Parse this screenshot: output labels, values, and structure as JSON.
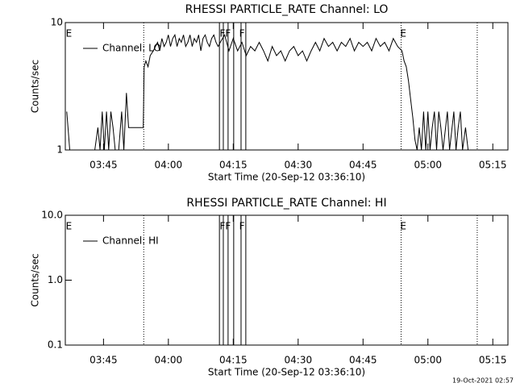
{
  "chart_data": [
    {
      "type": "line",
      "title": "RHESSI PARTICLE_RATE Channel: LO",
      "ylabel": "Counts/sec",
      "xlabel": "Start Time (20-Sep-12 03:36:10)",
      "log_y": true,
      "legend": "upper left",
      "xlim": [
        216.17,
        318.5
      ],
      "ylim": [
        1,
        10
      ],
      "yticks": [
        1,
        10
      ],
      "xticks": [
        {
          "value": 225,
          "label": "03:45"
        },
        {
          "value": 240,
          "label": "04:00"
        },
        {
          "value": 255,
          "label": "04:15"
        },
        {
          "value": 270,
          "label": "04:30"
        },
        {
          "value": 285,
          "label": "04:45"
        },
        {
          "value": 300,
          "label": "05:00"
        },
        {
          "value": 315,
          "label": "05:15"
        }
      ],
      "dotted_lines": [
        234.3,
        293.8,
        311.4
      ],
      "solid_lines": [
        251.8,
        252.7,
        253.8,
        255.1,
        256.8,
        257.9
      ],
      "markers": [
        {
          "x": 217.0,
          "label": "E"
        },
        {
          "x": 252.5,
          "label": "F"
        },
        {
          "x": 253.8,
          "label": "F"
        },
        {
          "x": 257.0,
          "label": "F"
        },
        {
          "x": 294.3,
          "label": "E"
        }
      ],
      "x": [
        216.5,
        217.2,
        218,
        219,
        220,
        221,
        222,
        223,
        223.7,
        224.2,
        224.7,
        225.2,
        225.7,
        226.2,
        226.7,
        227.2,
        227.7,
        228.5,
        229.2,
        229.7,
        230.3,
        230.8,
        231.5,
        232.5,
        233.5,
        234.2,
        234.4,
        234.8,
        235.3,
        235.8,
        236.5,
        237,
        237.5,
        238,
        238.5,
        239,
        239.5,
        240,
        240.5,
        241,
        241.5,
        242,
        242.5,
        243,
        243.5,
        244,
        244.5,
        245,
        245.5,
        246,
        246.5,
        247,
        247.5,
        248,
        248.5,
        249,
        249.5,
        250,
        250.5,
        251,
        251.5,
        252,
        253,
        254,
        255,
        256,
        257,
        258,
        259,
        260,
        261,
        262,
        263,
        264,
        265,
        266,
        267,
        268,
        269,
        270,
        271,
        272,
        273,
        274,
        275,
        276,
        277,
        278,
        279,
        280,
        281,
        282,
        283,
        284,
        285,
        286,
        287,
        288,
        289,
        290,
        291,
        292,
        293,
        294,
        294.5,
        295,
        295.5,
        296,
        296.5,
        297,
        297.5,
        298,
        298.5,
        299,
        299.5,
        300,
        300.5,
        301,
        301.5,
        302,
        302.5,
        303,
        303.5,
        304.5,
        305,
        306,
        306.5,
        307,
        307.5,
        308,
        308.7,
        309.3
      ],
      "series": [
        {
          "name": "Channel: LO",
          "color": "#000000",
          "values": [
            2,
            1,
            1,
            1,
            1,
            1,
            1,
            1,
            1.5,
            1,
            2,
            1,
            2,
            1,
            2,
            1.5,
            1,
            1,
            2,
            1,
            2.8,
            1.5,
            1.5,
            1.5,
            1.5,
            1.5,
            4.5,
            5,
            4.5,
            5.5,
            6,
            6.5,
            7,
            6,
            7.5,
            6.5,
            7,
            8,
            6.5,
            7.5,
            8,
            6.5,
            7.5,
            7,
            8,
            6.5,
            7,
            8,
            6.5,
            7.5,
            7,
            8,
            6,
            7.5,
            8,
            7,
            6.5,
            7.5,
            8,
            7,
            6.5,
            7,
            8,
            6,
            7.5,
            6,
            7,
            5.5,
            6.5,
            6,
            7,
            6,
            5,
            6.5,
            5.5,
            6,
            5,
            6,
            6.5,
            5.5,
            6,
            5,
            6,
            7,
            6,
            7.5,
            6.5,
            7,
            6,
            7,
            6.5,
            7.5,
            6,
            7,
            6.5,
            7,
            6,
            7.5,
            6.5,
            7,
            6,
            7.5,
            6.5,
            6,
            5,
            4.5,
            3.5,
            2.5,
            1.8,
            1.2,
            1,
            1.5,
            1,
            2,
            1,
            2,
            1,
            1.5,
            2,
            1,
            2,
            1.5,
            1,
            2,
            1,
            2,
            1,
            1.5,
            2,
            1,
            1.5,
            1
          ]
        }
      ]
    },
    {
      "type": "line",
      "title": "RHESSI PARTICLE_RATE Channel: HI",
      "ylabel": "Counts/sec",
      "xlabel": "Start Time (20-Sep-12 03:36:10)",
      "log_y": true,
      "legend": "upper left",
      "xlim": [
        216.17,
        318.5
      ],
      "ylim": [
        0.1,
        10
      ],
      "yticks": [
        0.1,
        {
          "value": 1,
          "label": "1.0"
        },
        {
          "value": 10,
          "label": "10.0"
        }
      ],
      "xticks": [
        {
          "value": 225,
          "label": "03:45"
        },
        {
          "value": 240,
          "label": "04:00"
        },
        {
          "value": 255,
          "label": "04:15"
        },
        {
          "value": 270,
          "label": "04:30"
        },
        {
          "value": 285,
          "label": "04:45"
        },
        {
          "value": 300,
          "label": "05:00"
        },
        {
          "value": 315,
          "label": "05:15"
        }
      ],
      "dotted_lines": [
        234.3,
        293.8,
        311.4
      ],
      "solid_lines": [
        251.8,
        252.7,
        253.8,
        255.1,
        256.8,
        257.9
      ],
      "markers": [
        {
          "x": 217.0,
          "label": "E"
        },
        {
          "x": 252.5,
          "label": "F"
        },
        {
          "x": 253.8,
          "label": "F"
        },
        {
          "x": 257.0,
          "label": "F"
        },
        {
          "x": 294.3,
          "label": "E"
        }
      ],
      "x": [],
      "series": [
        {
          "name": "Channel: HI",
          "color": "#000000",
          "values": []
        }
      ]
    }
  ],
  "footer": "19-Oct-2021 02:57"
}
